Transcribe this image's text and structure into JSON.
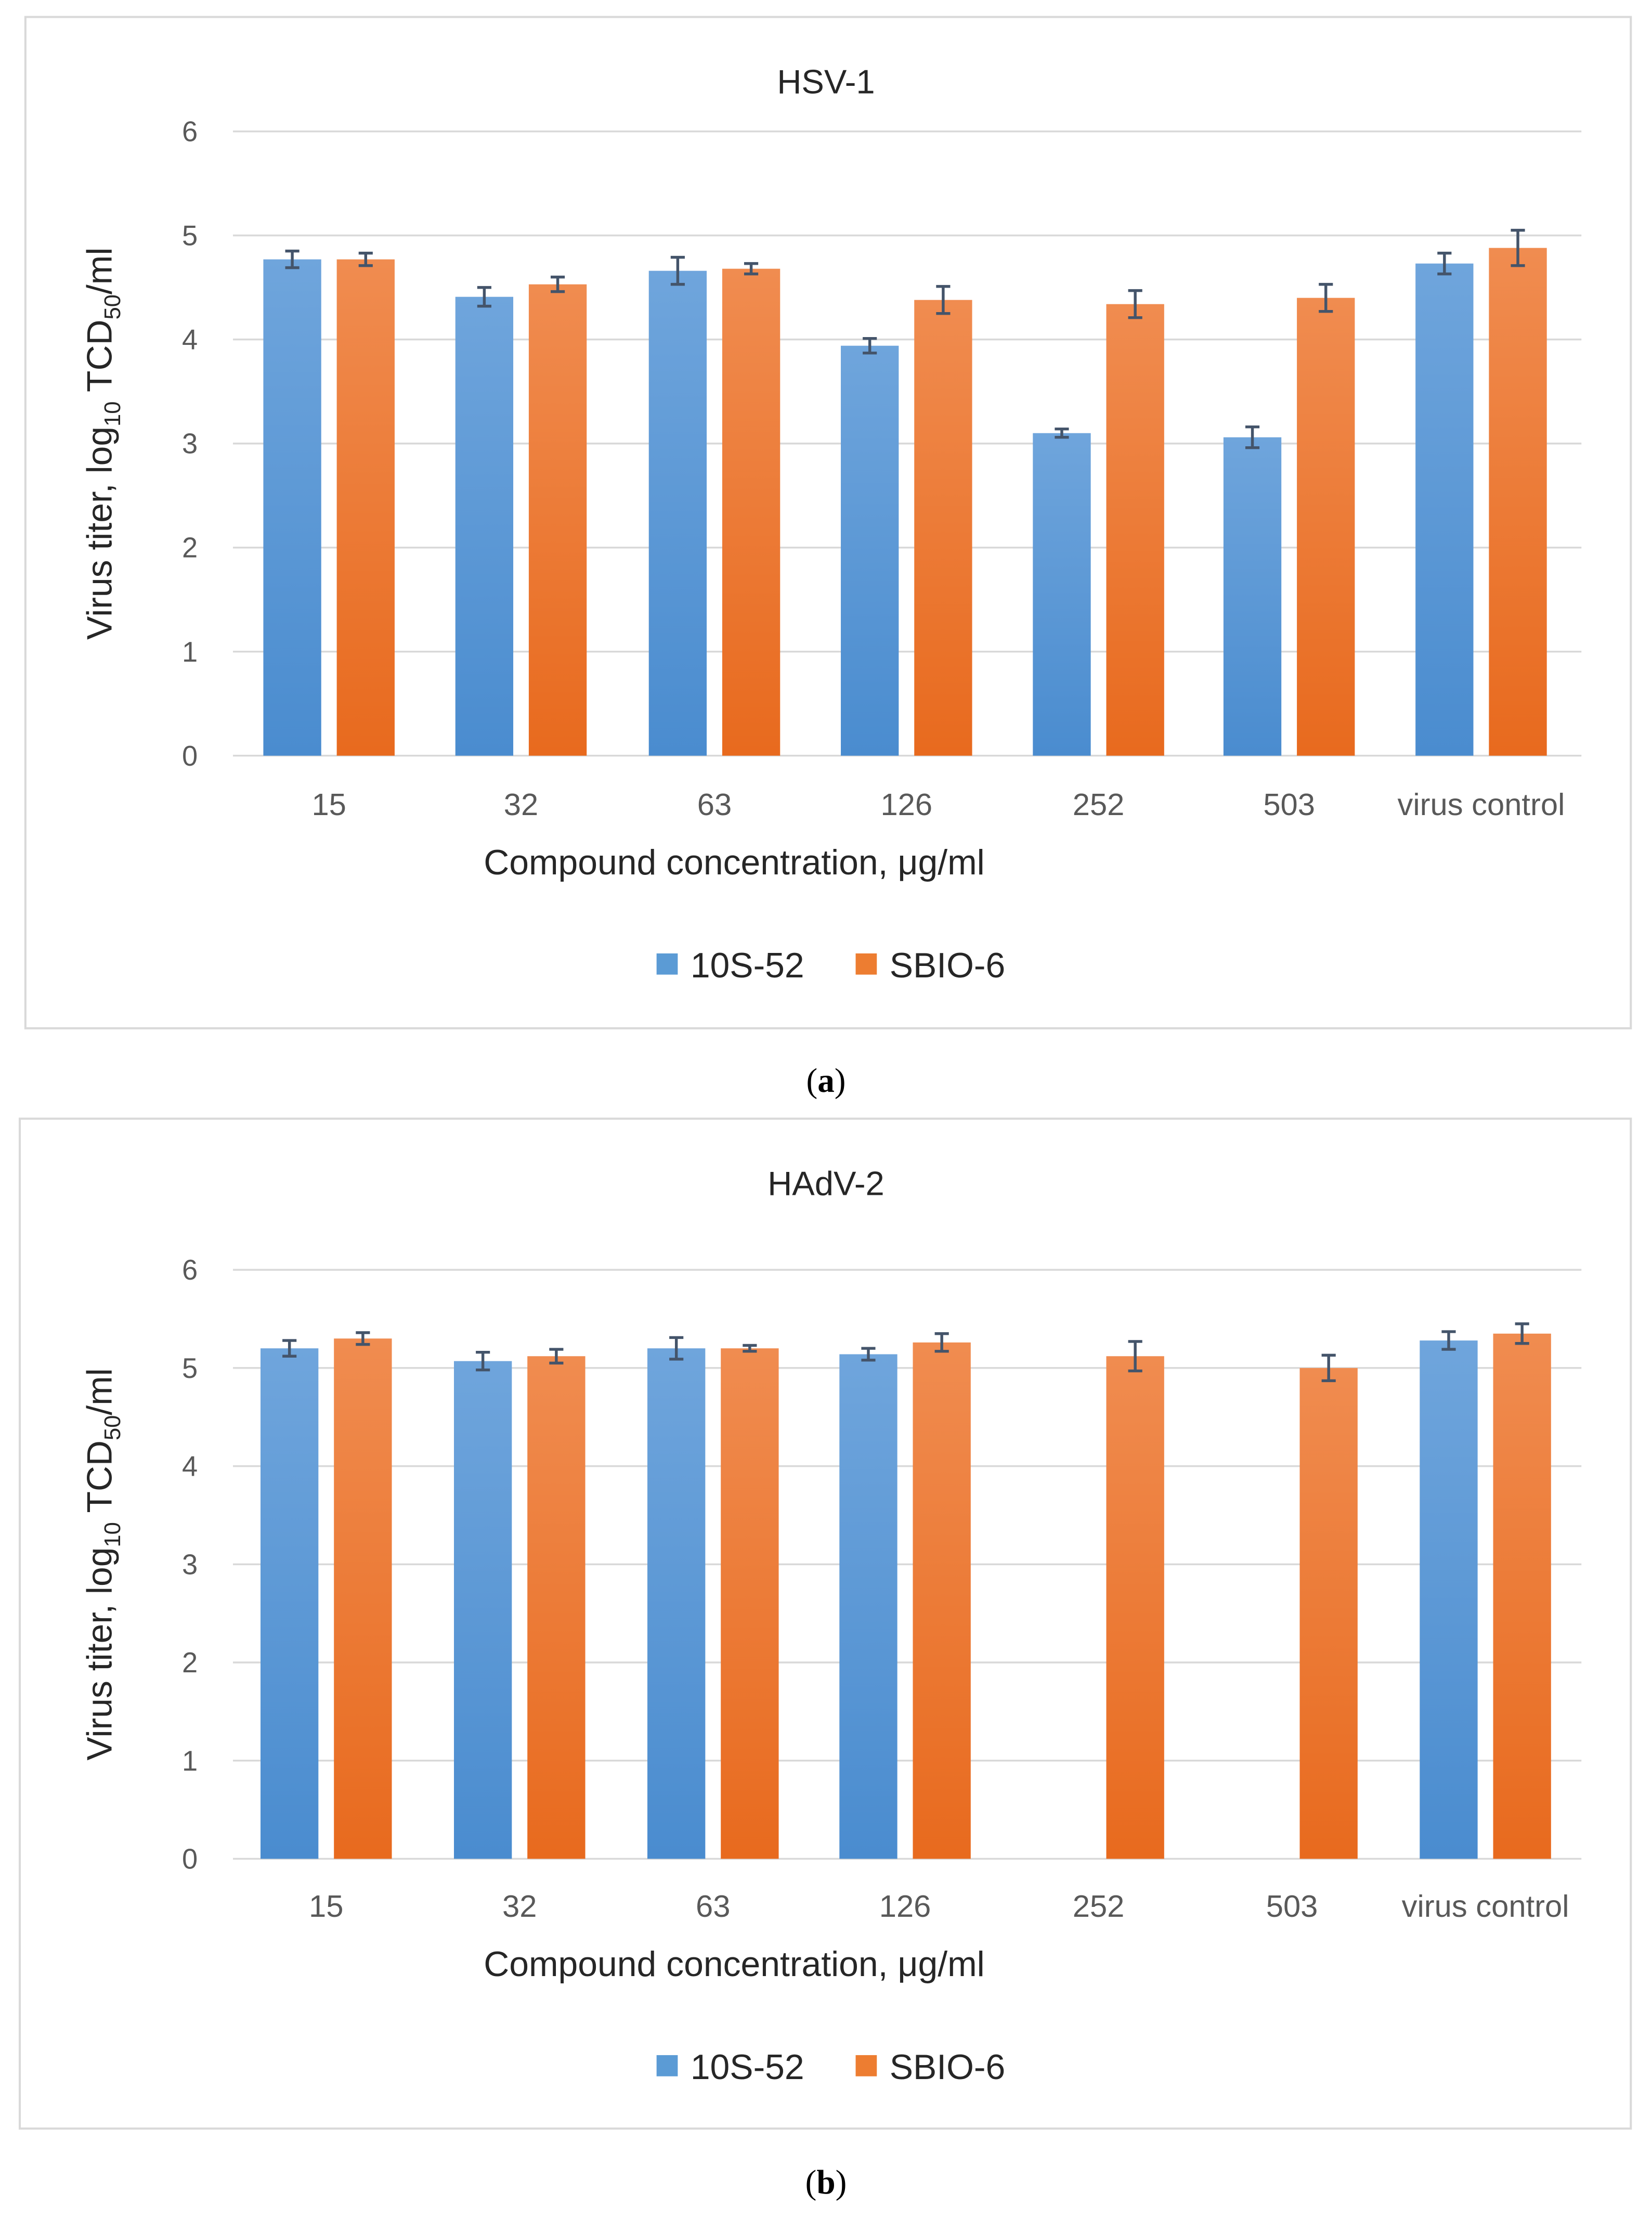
{
  "colors": {
    "series1": "#5b9bd5",
    "series2": "#ed7d31",
    "error": "#44546a",
    "grid": "#d9d9d9",
    "border": "#d9d9d9"
  },
  "chart_data": [
    {
      "type": "bar",
      "panel_label": "a",
      "title": "HSV-1",
      "xlabel": "Compound concentration, μg/ml",
      "ylabel_main": "Virus titer, log",
      "ylabel_sub": "10",
      "ylabel_rest": " TCD",
      "ylabel_sub2": "50",
      "ylabel_end": "/ml",
      "ylim": [
        0,
        6
      ],
      "yticks": [
        "0",
        "1",
        "2",
        "3",
        "4",
        "5",
        "6"
      ],
      "grid": true,
      "legend_position": "bottom",
      "categories": [
        "15",
        "32",
        "63",
        "126",
        "252",
        "503",
        "virus control"
      ],
      "series": [
        {
          "name": "10S-52",
          "values": [
            4.77,
            4.41,
            4.66,
            3.94,
            3.1,
            3.06,
            4.73
          ],
          "errors": [
            0.08,
            0.09,
            0.13,
            0.07,
            0.04,
            0.1,
            0.1
          ]
        },
        {
          "name": "SBIO-6",
          "values": [
            4.77,
            4.53,
            4.68,
            4.38,
            4.34,
            4.4,
            4.88
          ],
          "errors": [
            0.06,
            0.07,
            0.05,
            0.13,
            0.13,
            0.13,
            0.17
          ]
        }
      ]
    },
    {
      "type": "bar",
      "panel_label": "b",
      "title": "HAdV-2",
      "xlabel": "Compound concentration, μg/ml",
      "ylabel_main": "Virus titer, log",
      "ylabel_sub": "10",
      "ylabel_rest": " TCD",
      "ylabel_sub2": "50",
      "ylabel_end": "/ml",
      "ylim": [
        0,
        6
      ],
      "yticks": [
        "0",
        "1",
        "2",
        "3",
        "4",
        "5",
        "6"
      ],
      "grid": true,
      "legend_position": "bottom",
      "categories": [
        "15",
        "32",
        "63",
        "126",
        "252",
        "503",
        "virus control"
      ],
      "series": [
        {
          "name": "10S-52",
          "values": [
            5.2,
            5.07,
            5.2,
            5.14,
            null,
            null,
            5.28
          ],
          "errors": [
            0.08,
            0.09,
            0.11,
            0.06,
            null,
            null,
            0.09
          ]
        },
        {
          "name": "SBIO-6",
          "values": [
            5.3,
            5.12,
            5.2,
            5.26,
            5.12,
            5.0,
            5.35
          ],
          "errors": [
            0.06,
            0.07,
            0.03,
            0.09,
            0.15,
            0.13,
            0.1
          ]
        }
      ]
    }
  ]
}
